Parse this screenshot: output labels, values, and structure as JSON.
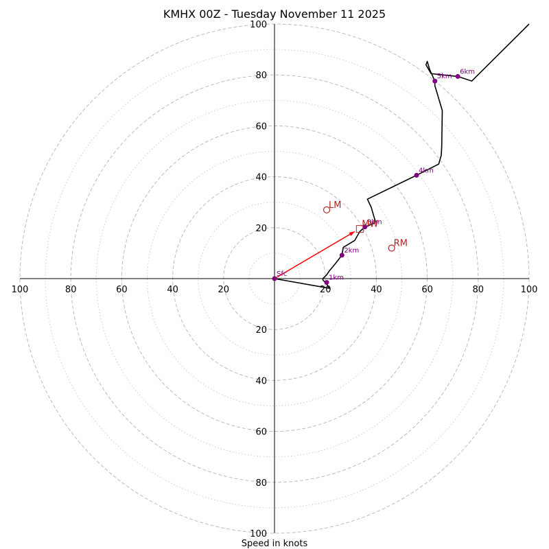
{
  "chart_data": {
    "type": "hodograph",
    "title": "KMHX 00Z - Tuesday November 11 2025",
    "xlabel": "Speed in knots",
    "range": [
      -100,
      100
    ],
    "ring_labels": [
      "20",
      "40",
      "60",
      "80",
      "100"
    ],
    "x_tick_labels": [
      "100",
      "80",
      "60",
      "40",
      "20",
      "20",
      "40",
      "60",
      "80",
      "100"
    ],
    "y_tick_labels_top": [
      "20",
      "40",
      "60",
      "80",
      "100"
    ],
    "y_tick_labels_bottom": [
      "20",
      "40",
      "60",
      "80",
      "100"
    ],
    "dashed_ring_speeds": [
      20,
      40,
      60,
      80,
      100
    ],
    "dotted_ring_speeds": [
      10,
      30,
      50,
      70,
      90
    ],
    "trace": [
      {
        "u": 0,
        "v": 0
      },
      {
        "u": 21.5,
        "v": -3.8
      },
      {
        "u": 20.5,
        "v": -2.2
      },
      {
        "u": 19,
        "v": -0.5
      },
      {
        "u": 19,
        "v": 0
      },
      {
        "u": 20.5,
        "v": 1.5
      },
      {
        "u": 21.5,
        "v": 3
      },
      {
        "u": 24,
        "v": 6
      },
      {
        "u": 26.5,
        "v": 9.2
      },
      {
        "u": 27,
        "v": 12.3
      },
      {
        "u": 31.5,
        "v": 15
      },
      {
        "u": 33.5,
        "v": 18.5
      },
      {
        "u": 35.5,
        "v": 20.3
      },
      {
        "u": 39.5,
        "v": 21.9
      },
      {
        "u": 39.5,
        "v": 23
      },
      {
        "u": 39,
        "v": 24.5
      },
      {
        "u": 38,
        "v": 28
      },
      {
        "u": 36.5,
        "v": 31.2
      },
      {
        "u": 55.8,
        "v": 40.6
      },
      {
        "u": 64.5,
        "v": 45
      },
      {
        "u": 65.5,
        "v": 48.5
      },
      {
        "u": 65.7,
        "v": 52
      },
      {
        "u": 65.9,
        "v": 66
      },
      {
        "u": 63,
        "v": 75.8
      },
      {
        "u": 63,
        "v": 77.6
      },
      {
        "u": 61,
        "v": 82
      },
      {
        "u": 60,
        "v": 85.3
      },
      {
        "u": 59.5,
        "v": 84
      },
      {
        "u": 61.5,
        "v": 80.5
      },
      {
        "u": 72,
        "v": 79.4
      },
      {
        "u": 77.5,
        "v": 77.6
      },
      {
        "u": 100,
        "v": 100
      }
    ],
    "height_markers": [
      {
        "label": "Sfc",
        "u": 0,
        "v": 0
      },
      {
        "label": "1km",
        "u": 20.5,
        "v": -1.5
      },
      {
        "label": "2km",
        "u": 26.5,
        "v": 9.2
      },
      {
        "label": "3km",
        "u": 35.5,
        "v": 20.3
      },
      {
        "label": "4km",
        "u": 55.8,
        "v": 40.6
      },
      {
        "label": "5km",
        "u": 63,
        "v": 77.6
      },
      {
        "label": "6km",
        "u": 72,
        "v": 79.4
      }
    ],
    "storm_motion": [
      {
        "label": "LM",
        "u": 20.5,
        "v": 27
      },
      {
        "label": "RM",
        "u": 46,
        "v": 12
      },
      {
        "label": "MW",
        "u": 33.5,
        "v": 19.5
      }
    ],
    "shear_vector": {
      "from_u": 0,
      "from_v": 0,
      "to_u": 31.5,
      "to_v": 18.5
    },
    "colors": {
      "trace": "#000000",
      "marker": "#800080",
      "storm": "#b22222",
      "shear": "#ff0000",
      "grid": "#bbbbbb"
    }
  }
}
